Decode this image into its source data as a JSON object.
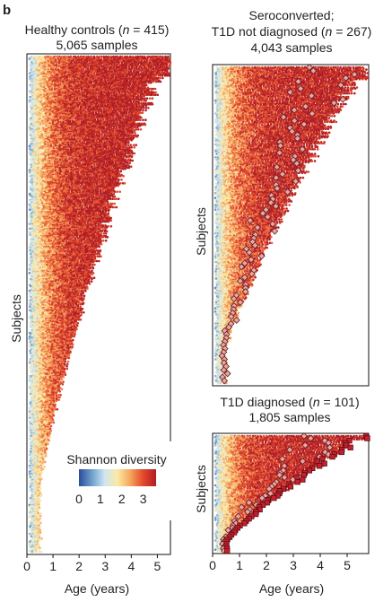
{
  "panel_label": "b",
  "chart_data": [
    {
      "type": "scatter",
      "title_main": "Healthy controls (",
      "title_n": "n",
      "title_rest": " = 415)",
      "subtitle": "5,065 samples",
      "xlabel": "Age (years)",
      "ylabel": "Subjects",
      "xlim": [
        0,
        5.5
      ],
      "x_ticks": [
        0,
        1,
        2,
        3,
        4,
        5
      ],
      "subjects": 415,
      "samples": 5065,
      "max_followup_years": 5.4,
      "markers": "dots",
      "grid": false
    },
    {
      "type": "scatter",
      "title_main": "Seroconverted;",
      "title_n_pre": "T1D not diagnosed (",
      "title_n": "n",
      "title_rest": " = 267)",
      "subtitle": "4,043 samples",
      "xlabel": "",
      "ylabel": "Subjects",
      "xlim": [
        0,
        5.8
      ],
      "subjects": 267,
      "samples": 4043,
      "max_followup_years": 5.7,
      "markers": "dots with diamond seroconversion events",
      "grid": false
    },
    {
      "type": "scatter",
      "title_main": "T1D diagnosed (",
      "title_n": "n",
      "title_rest": " = 101)",
      "subtitle": "1,805 samples",
      "xlabel": "Age (years)",
      "ylabel": "Subjects",
      "xlim": [
        0,
        5.8
      ],
      "x_ticks": [
        0,
        1,
        2,
        3,
        4,
        5
      ],
      "subjects": 101,
      "samples": 1805,
      "max_followup_years": 5.7,
      "markers": "dots with diamond seroconversion events and square diagnosis events",
      "grid": false
    }
  ],
  "legend": {
    "title": "Shannon diversity",
    "ticks": [
      0,
      1,
      2,
      3
    ],
    "range": [
      0,
      3.6
    ],
    "colors": [
      "#2c4c9c",
      "#6f9fcc",
      "#cfe6f1",
      "#fbeaa4",
      "#f6a45c",
      "#e2482b",
      "#b01d24"
    ]
  }
}
